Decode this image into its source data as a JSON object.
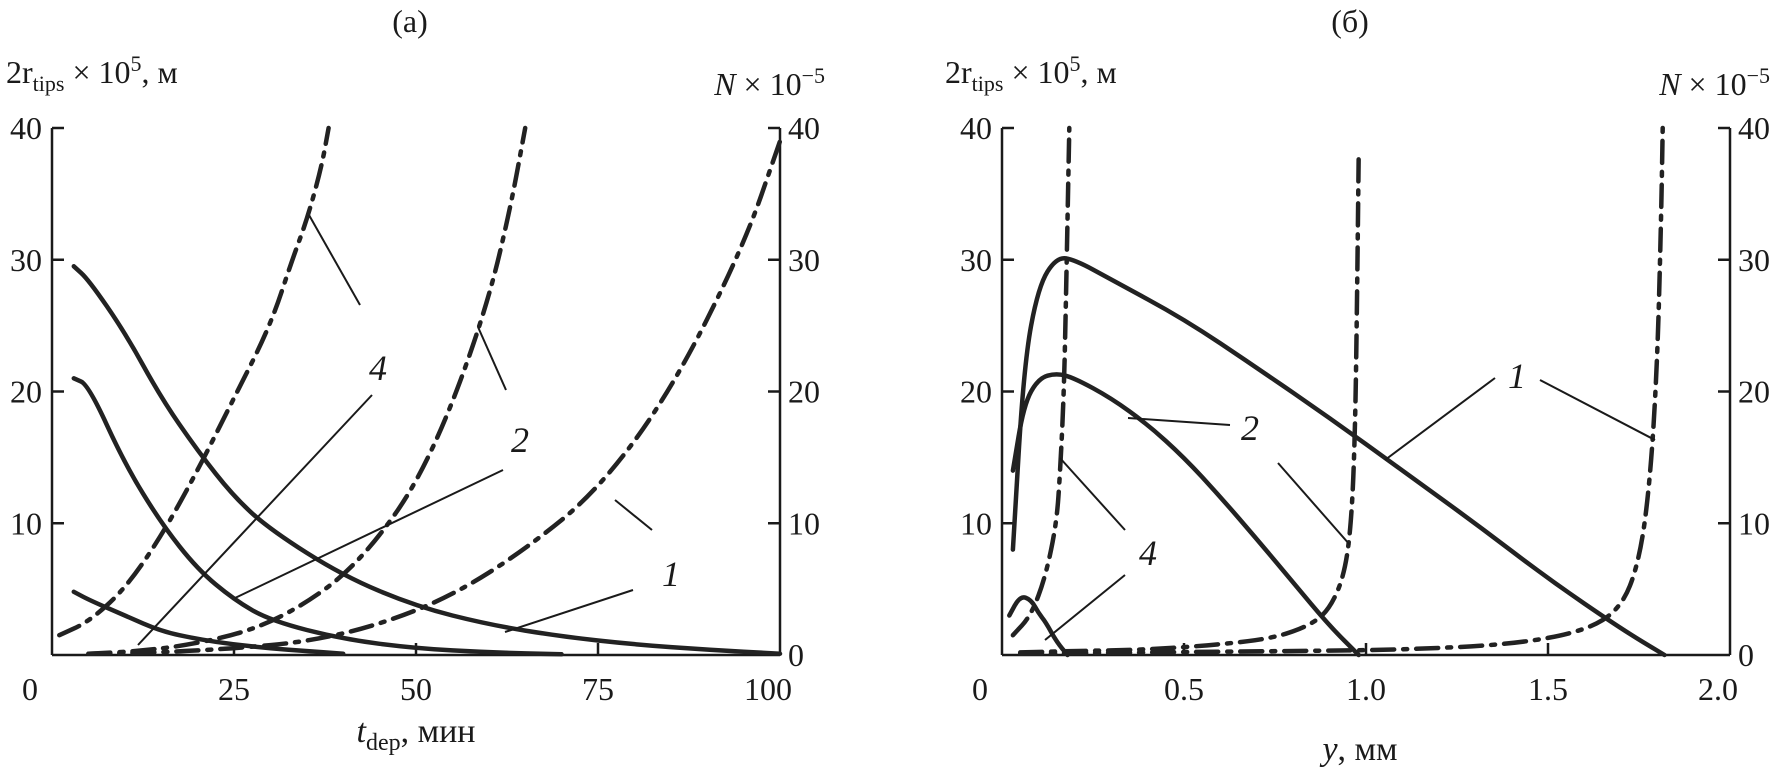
{
  "chart_data": [
    {
      "panel_label": "(а)",
      "type": "line",
      "ylabel_left": {
        "base": "2r",
        "sub": "tips",
        "mid": " × 10",
        "sup": "5",
        "unit": ", м"
      },
      "ylabel_right": {
        "var": "N",
        "mid": " × 10",
        "sup": "−5"
      },
      "xlabel": {
        "var": "t",
        "sub": "dep",
        "unit": ", мин"
      },
      "xlim": [
        0,
        100
      ],
      "ylim": [
        0,
        40
      ],
      "xticks": [
        "0",
        "25",
        "50",
        "75",
        "100"
      ],
      "yticks_left": [
        "10",
        "20",
        "30",
        "40"
      ],
      "yticks_right": [
        "0",
        "10",
        "20",
        "30",
        "40"
      ],
      "series": [
        {
          "curve_id": "1",
          "style": "solid",
          "axis": "left",
          "x": [
            3,
            5,
            10,
            15,
            20,
            25,
            30,
            40,
            50,
            60,
            70,
            80,
            90,
            100
          ],
          "y": [
            29.5,
            28.5,
            24.5,
            19.5,
            15.5,
            12,
            9.5,
            6,
            3.7,
            2.3,
            1.4,
            0.8,
            0.4,
            0.1
          ]
        },
        {
          "curve_id": "2",
          "style": "solid",
          "axis": "left",
          "x": [
            3,
            5,
            10,
            15,
            20,
            25,
            30,
            40,
            50,
            60,
            70
          ],
          "y": [
            21,
            20.5,
            14.5,
            10,
            6.5,
            4.2,
            2.6,
            1.2,
            0.5,
            0.2,
            0.05
          ]
        },
        {
          "curve_id": "4",
          "style": "solid",
          "axis": "left",
          "x": [
            3,
            5,
            10,
            15,
            20,
            25,
            30,
            35,
            40
          ],
          "y": [
            4.8,
            4.2,
            3,
            1.8,
            1.2,
            0.8,
            0.5,
            0.3,
            0.1
          ]
        },
        {
          "curve_id": "1",
          "style": "dashdot",
          "axis": "right",
          "x": [
            5,
            15,
            25,
            35,
            45,
            55,
            65,
            75,
            85,
            95,
            100
          ],
          "y": [
            0.1,
            0.2,
            0.5,
            1,
            2.3,
            4.5,
            8,
            12.5,
            20,
            31,
            39
          ]
        },
        {
          "curve_id": "2",
          "style": "dashdot",
          "axis": "right",
          "x": [
            5,
            12,
            18,
            25,
            30,
            35,
            40,
            45,
            50,
            55,
            60,
            63,
            65
          ],
          "y": [
            0.1,
            0.3,
            0.7,
            1.5,
            2.5,
            4,
            6,
            9,
            13,
            19,
            27,
            34,
            40
          ]
        },
        {
          "curve_id": "4",
          "style": "dashdot",
          "axis": "right",
          "x": [
            1,
            5,
            10,
            15,
            20,
            25,
            30,
            33,
            35,
            37,
            38
          ],
          "y": [
            1.5,
            2.5,
            5,
            9,
            14,
            19.5,
            25,
            30,
            33,
            37,
            40
          ]
        }
      ],
      "labels": [
        "4",
        "2",
        "1"
      ]
    },
    {
      "panel_label": "(б)",
      "type": "line",
      "ylabel_left": {
        "base": "2r",
        "sub": "tips",
        "mid": " × 10",
        "sup": "5",
        "unit": ", м"
      },
      "ylabel_right": {
        "var": "N",
        "mid": " × 10",
        "sup": "−5"
      },
      "xlabel": {
        "var": "y",
        "unit": ", мм"
      },
      "xlim": [
        0,
        2.0
      ],
      "ylim": [
        0,
        40
      ],
      "xticks": [
        "0",
        "0.5",
        "1.0",
        "1.5",
        "2.0"
      ],
      "yticks_left": [
        "10",
        "20",
        "30",
        "40"
      ],
      "yticks_right": [
        "0",
        "10",
        "20",
        "30",
        "40"
      ],
      "series": [
        {
          "curve_id": "1",
          "style": "solid",
          "axis": "left",
          "x": [
            0.03,
            0.06,
            0.1,
            0.15,
            0.2,
            0.3,
            0.5,
            0.7,
            0.9,
            1.1,
            1.3,
            1.5,
            1.7,
            1.82
          ],
          "y": [
            8,
            22,
            28,
            30.2,
            30,
            28.5,
            25.5,
            21.8,
            18,
            14,
            10,
            5.8,
            2,
            0
          ]
        },
        {
          "curve_id": "2",
          "style": "solid",
          "axis": "left",
          "x": [
            0.03,
            0.06,
            0.1,
            0.15,
            0.2,
            0.3,
            0.4,
            0.5,
            0.6,
            0.7,
            0.8,
            0.9,
            0.98
          ],
          "y": [
            14,
            19,
            21,
            21.4,
            21,
            19.5,
            17.5,
            15,
            12,
            8.8,
            5.5,
            2.2,
            0
          ]
        },
        {
          "curve_id": "4",
          "style": "solid",
          "axis": "left",
          "x": [
            0.02,
            0.05,
            0.08,
            0.1,
            0.12,
            0.15,
            0.18
          ],
          "y": [
            3,
            4.5,
            4.2,
            3.2,
            2.5,
            1,
            0
          ]
        },
        {
          "curve_id": "4",
          "style": "dashdot",
          "axis": "right",
          "x": [
            0.03,
            0.08,
            0.12,
            0.15,
            0.16,
            0.17,
            0.175,
            0.18,
            0.185
          ],
          "y": [
            1.5,
            3,
            6,
            10,
            14,
            20,
            26,
            33,
            40
          ]
        },
        {
          "curve_id": "2",
          "style": "dashdot",
          "axis": "right",
          "x": [
            0.05,
            0.2,
            0.4,
            0.6,
            0.75,
            0.85,
            0.9,
            0.94,
            0.96,
            0.97,
            0.975,
            0.98
          ],
          "y": [
            0.2,
            0.3,
            0.4,
            0.8,
            1.3,
            2.3,
            3.5,
            6,
            10,
            17,
            26,
            38
          ]
        },
        {
          "curve_id": "1",
          "style": "dashdot",
          "axis": "right",
          "x": [
            0.05,
            0.4,
            0.8,
            1.1,
            1.4,
            1.6,
            1.7,
            1.75,
            1.78,
            1.8,
            1.81,
            1.815
          ],
          "y": [
            0.1,
            0.2,
            0.3,
            0.4,
            0.8,
            1.8,
            3.5,
            7,
            13,
            22,
            32,
            40
          ]
        }
      ],
      "labels": [
        "1",
        "2",
        "4"
      ]
    }
  ]
}
